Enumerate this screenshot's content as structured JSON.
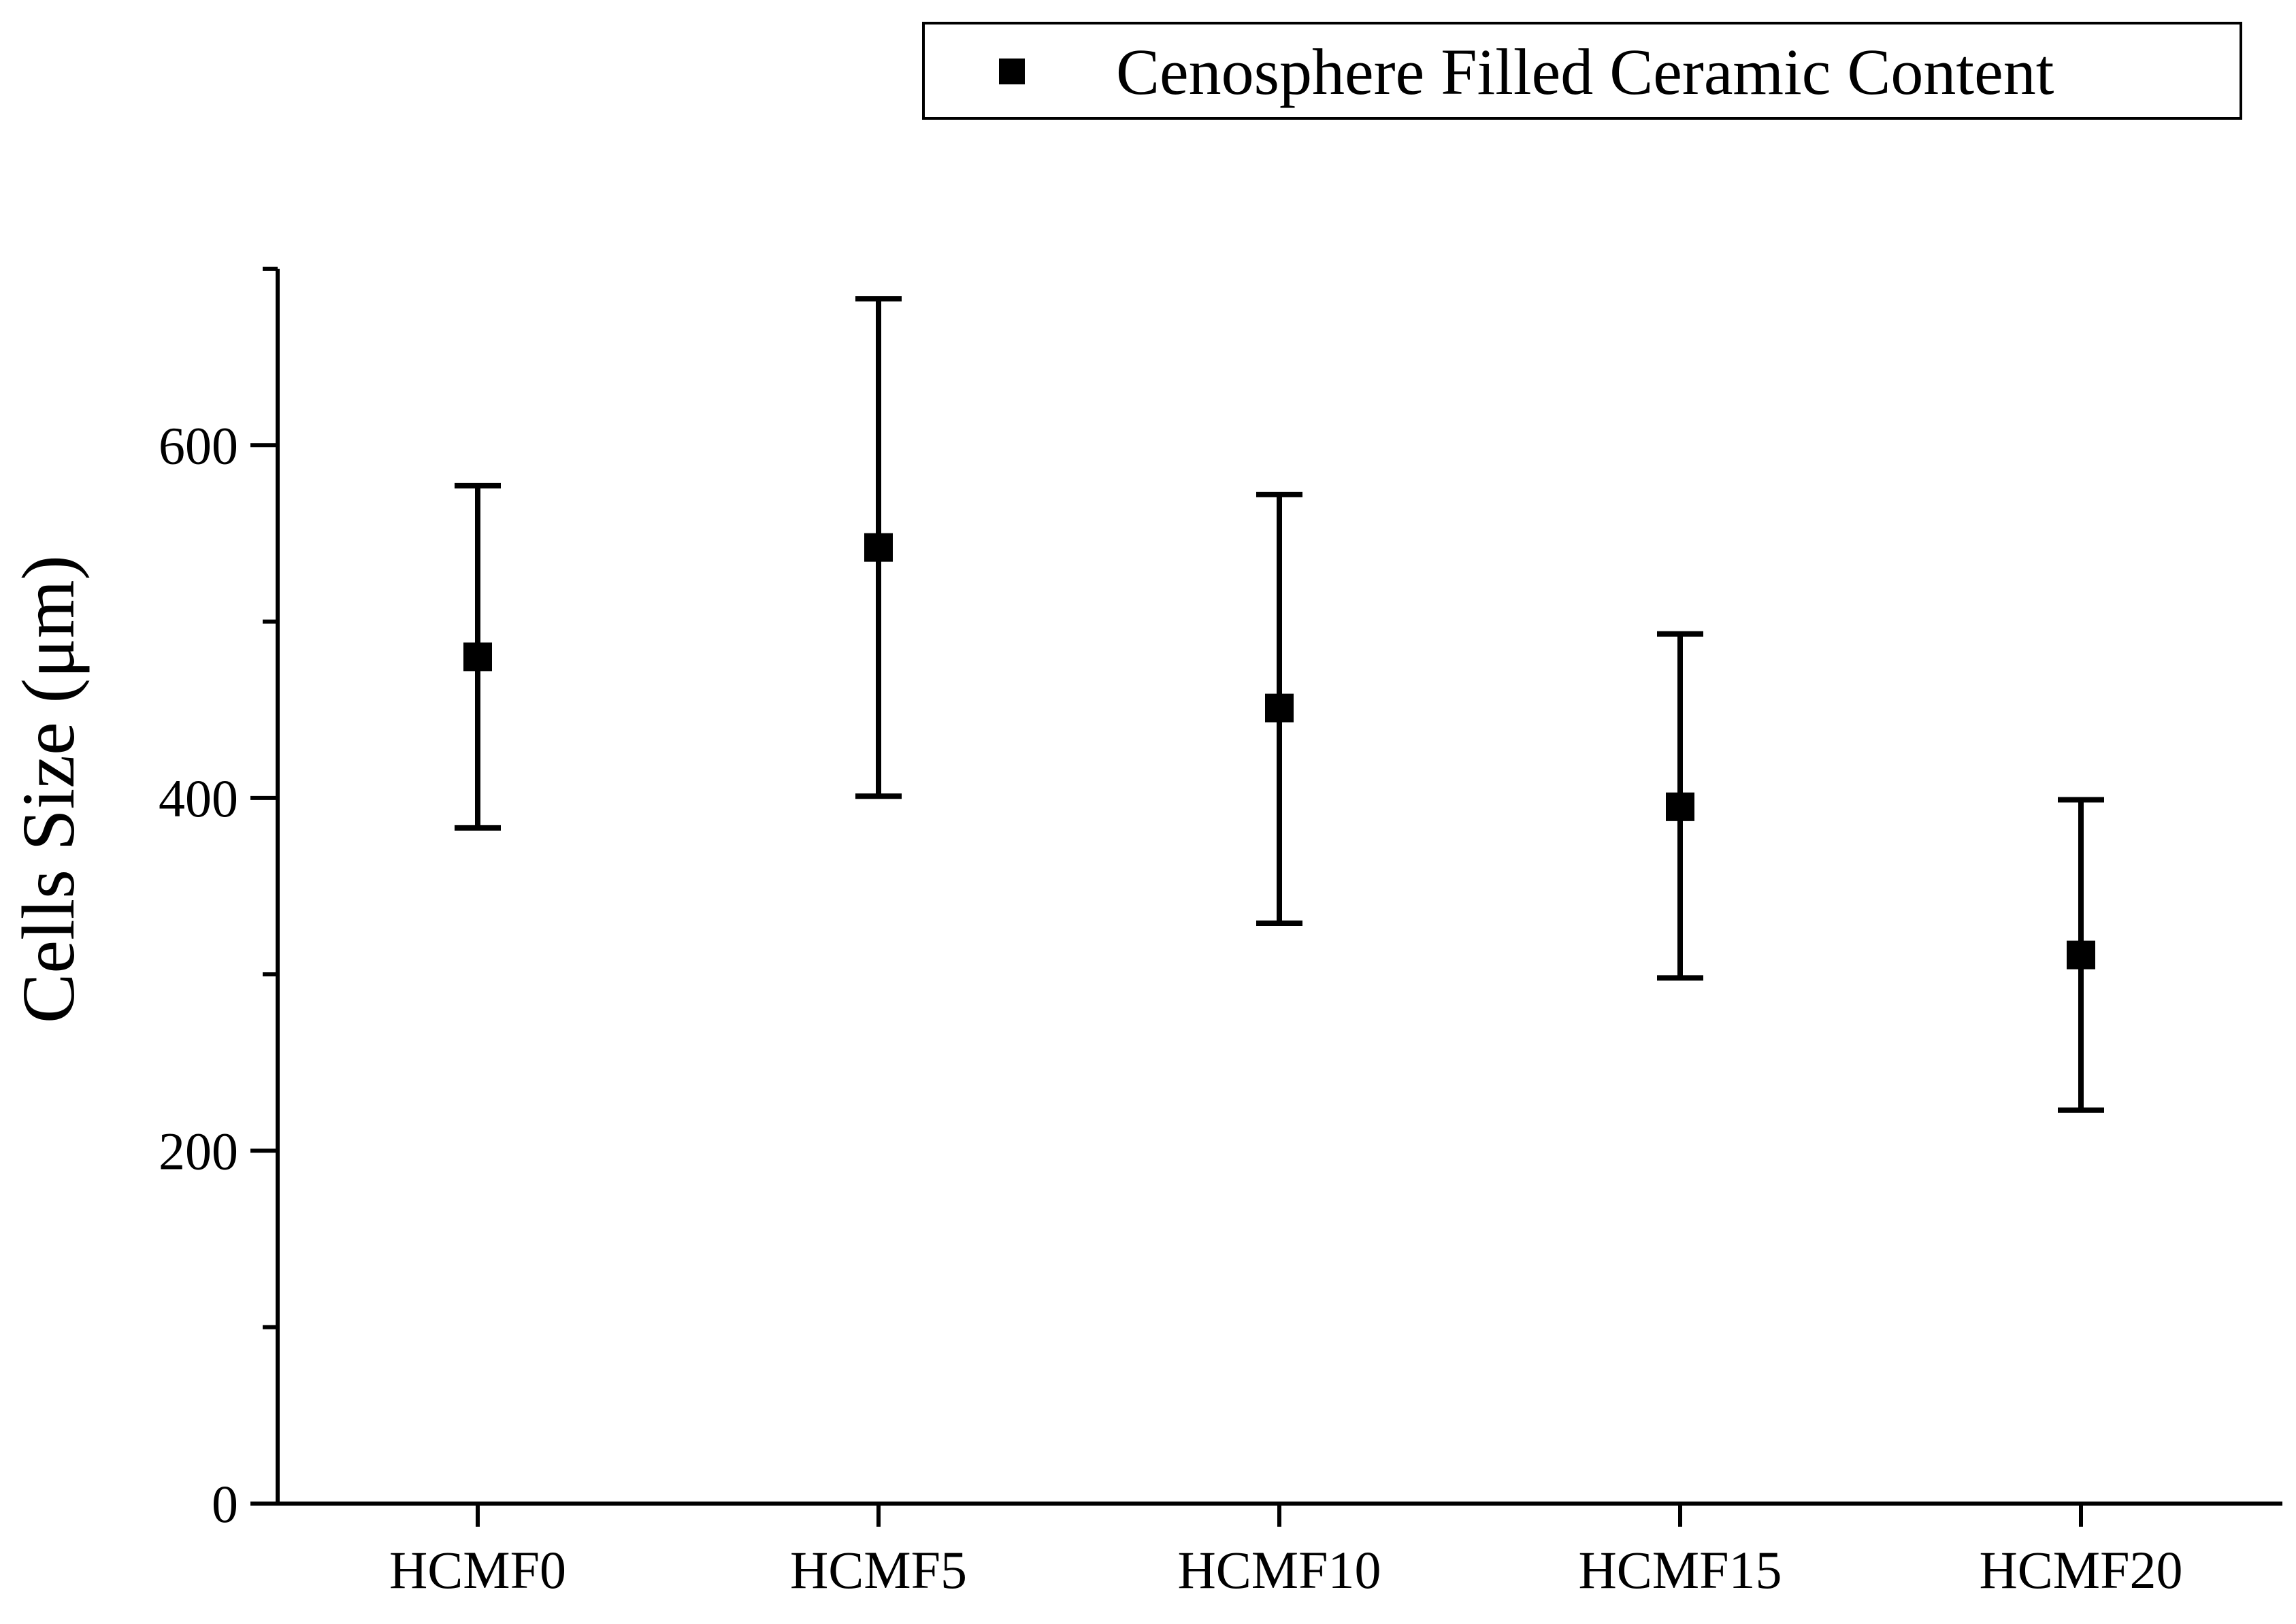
{
  "chart_data": {
    "type": "scatter",
    "categories": [
      "HCMF0",
      "HCMF5",
      "HCMF10",
      "HCMF15",
      "HCMF20"
    ],
    "series": [
      {
        "name": "Cenosphere Filled Ceramic Content",
        "values": [
          480,
          542,
          451,
          395,
          311
        ],
        "error_low": [
          383,
          401,
          329,
          298,
          223
        ],
        "error_high": [
          577,
          683,
          572,
          493,
          399
        ],
        "marker": "square",
        "color": "#000000"
      }
    ],
    "xlabel": "",
    "ylabel": "Cells Size (μm)",
    "ylim": [
      0,
      700
    ],
    "yticks_major": [
      0,
      200,
      400,
      600
    ],
    "yticks_minor": [
      100,
      300,
      500,
      700
    ],
    "legend_position": "top-right",
    "grid": false
  }
}
